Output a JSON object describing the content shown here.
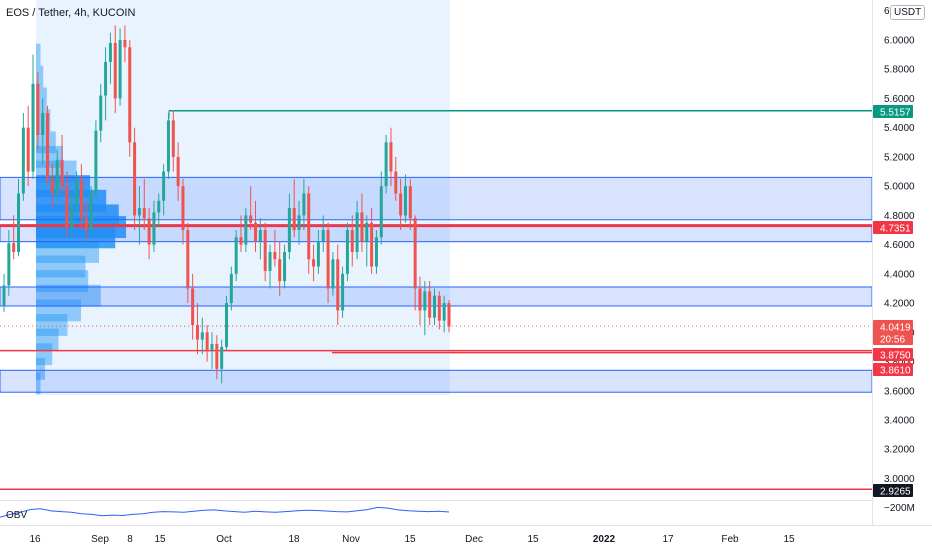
{
  "header": {
    "symbol": "EOS / Tether, 4h, KUCOIN",
    "currency": "USDT"
  },
  "colors": {
    "up": "#26a69a",
    "down": "#ef5350",
    "zone": "#2962ff",
    "redline": "#f23645",
    "greenline": "#089981",
    "profile": "#2196f3",
    "last_price": "#ef5350",
    "label_dark": "#131722"
  },
  "chart_data": {
    "type": "candlestick",
    "y_axis": {
      "ticks": [
        "6.0000",
        "5.8000",
        "5.6000",
        "5.4000",
        "5.2000",
        "5.0000",
        "4.8000",
        "4.6000",
        "4.4000",
        "4.2000",
        "4.0000",
        "3.8000",
        "3.6000",
        "3.4000",
        "3.2000",
        "3.0000"
      ],
      "top_partial_label": "6."
    },
    "x_axis": {
      "ticks": [
        "16",
        "Sep",
        "8",
        "15",
        "Oct",
        "18",
        "Nov",
        "15",
        "Dec",
        "15",
        "2022",
        "17",
        "Feb",
        "15"
      ]
    },
    "price_tags": [
      {
        "value": "5.5157",
        "kind": "green"
      },
      {
        "value": "4.7351",
        "kind": "red"
      },
      {
        "value": "4.0419",
        "kind": "last"
      },
      {
        "value": "20:56",
        "kind": "countdown"
      },
      {
        "value": "3.8750",
        "kind": "red"
      },
      {
        "value": "3.8610",
        "kind": "red"
      },
      {
        "value": "2.9265",
        "kind": "dark"
      }
    ],
    "horizontal_lines": [
      {
        "price": 5.5157,
        "color": "green",
        "from_date": "Sep 21"
      },
      {
        "price": 4.7351,
        "color": "red"
      },
      {
        "price": 4.725,
        "color": "red"
      },
      {
        "price": 3.875,
        "color": "red"
      },
      {
        "price": 3.861,
        "color": "red",
        "from_date": "Oct 31"
      },
      {
        "price": 2.9265,
        "color": "red"
      }
    ],
    "zones": [
      {
        "low": 4.77,
        "high": 5.06
      },
      {
        "low": 4.62,
        "high": 4.73
      },
      {
        "low": 4.18,
        "high": 4.31
      },
      {
        "low": 3.59,
        "high": 3.74
      }
    ],
    "candles": [
      {
        "o": 4.18,
        "h": 4.4,
        "l": 4.14,
        "c": 4.32
      },
      {
        "o": 4.32,
        "h": 4.7,
        "l": 4.25,
        "c": 4.61
      },
      {
        "o": 4.61,
        "h": 4.8,
        "l": 4.5,
        "c": 4.55
      },
      {
        "o": 4.55,
        "h": 5.05,
        "l": 4.52,
        "c": 4.95
      },
      {
        "o": 4.95,
        "h": 5.5,
        "l": 4.9,
        "c": 5.4
      },
      {
        "o": 5.4,
        "h": 5.55,
        "l": 5.0,
        "c": 5.1
      },
      {
        "o": 5.1,
        "h": 5.9,
        "l": 5.05,
        "c": 5.7
      },
      {
        "o": 5.7,
        "h": 5.78,
        "l": 5.25,
        "c": 5.35
      },
      {
        "o": 5.35,
        "h": 5.6,
        "l": 5.15,
        "c": 5.5
      },
      {
        "o": 5.5,
        "h": 5.55,
        "l": 5.0,
        "c": 5.05
      },
      {
        "o": 5.05,
        "h": 5.15,
        "l": 4.85,
        "c": 4.95
      },
      {
        "o": 4.95,
        "h": 5.25,
        "l": 4.9,
        "c": 5.18
      },
      {
        "o": 5.18,
        "h": 5.35,
        "l": 4.95,
        "c": 5.0
      },
      {
        "o": 5.0,
        "h": 5.1,
        "l": 4.65,
        "c": 4.72
      },
      {
        "o": 4.72,
        "h": 4.95,
        "l": 4.65,
        "c": 4.88
      },
      {
        "o": 4.88,
        "h": 5.1,
        "l": 4.8,
        "c": 5.05
      },
      {
        "o": 5.05,
        "h": 5.15,
        "l": 4.7,
        "c": 4.78
      },
      {
        "o": 4.78,
        "h": 4.9,
        "l": 4.62,
        "c": 4.7
      },
      {
        "o": 4.7,
        "h": 5.0,
        "l": 4.65,
        "c": 4.95
      },
      {
        "o": 4.95,
        "h": 5.45,
        "l": 4.92,
        "c": 5.38
      },
      {
        "o": 5.38,
        "h": 5.7,
        "l": 5.3,
        "c": 5.62
      },
      {
        "o": 5.62,
        "h": 5.95,
        "l": 5.45,
        "c": 5.85
      },
      {
        "o": 5.85,
        "h": 6.05,
        "l": 5.7,
        "c": 5.98
      },
      {
        "o": 5.98,
        "h": 6.1,
        "l": 5.5,
        "c": 5.6
      },
      {
        "o": 5.6,
        "h": 6.08,
        "l": 5.55,
        "c": 6.0
      },
      {
        "o": 6.0,
        "h": 6.1,
        "l": 5.85,
        "c": 5.95
      },
      {
        "o": 5.95,
        "h": 6.0,
        "l": 5.2,
        "c": 5.3
      },
      {
        "o": 5.3,
        "h": 5.4,
        "l": 4.7,
        "c": 4.8
      },
      {
        "o": 4.8,
        "h": 5.0,
        "l": 4.6,
        "c": 4.85
      },
      {
        "o": 4.85,
        "h": 5.05,
        "l": 4.7,
        "c": 4.78
      },
      {
        "o": 4.78,
        "h": 4.85,
        "l": 4.5,
        "c": 4.6
      },
      {
        "o": 4.6,
        "h": 4.9,
        "l": 4.55,
        "c": 4.82
      },
      {
        "o": 4.82,
        "h": 4.95,
        "l": 4.72,
        "c": 4.9
      },
      {
        "o": 4.9,
        "h": 5.15,
        "l": 4.8,
        "c": 5.1
      },
      {
        "o": 5.1,
        "h": 5.5,
        "l": 5.05,
        "c": 5.45
      },
      {
        "o": 5.45,
        "h": 5.52,
        "l": 5.1,
        "c": 5.2
      },
      {
        "o": 5.2,
        "h": 5.3,
        "l": 4.9,
        "c": 5.0
      },
      {
        "o": 5.0,
        "h": 5.05,
        "l": 4.6,
        "c": 4.7
      },
      {
        "o": 4.7,
        "h": 4.75,
        "l": 4.2,
        "c": 4.3
      },
      {
        "o": 4.3,
        "h": 4.4,
        "l": 3.95,
        "c": 4.05
      },
      {
        "o": 4.05,
        "h": 4.2,
        "l": 3.85,
        "c": 3.95
      },
      {
        "o": 3.95,
        "h": 4.1,
        "l": 3.85,
        "c": 4.0
      },
      {
        "o": 4.0,
        "h": 4.05,
        "l": 3.8,
        "c": 3.88
      },
      {
        "o": 3.88,
        "h": 4.0,
        "l": 3.75,
        "c": 3.92
      },
      {
        "o": 3.92,
        "h": 3.98,
        "l": 3.68,
        "c": 3.75
      },
      {
        "o": 3.75,
        "h": 3.95,
        "l": 3.65,
        "c": 3.9
      },
      {
        "o": 3.9,
        "h": 4.25,
        "l": 3.88,
        "c": 4.2
      },
      {
        "o": 4.2,
        "h": 4.45,
        "l": 4.15,
        "c": 4.4
      },
      {
        "o": 4.4,
        "h": 4.7,
        "l": 4.35,
        "c": 4.65
      },
      {
        "o": 4.65,
        "h": 4.8,
        "l": 4.55,
        "c": 4.6
      },
      {
        "o": 4.6,
        "h": 4.85,
        "l": 4.55,
        "c": 4.8
      },
      {
        "o": 4.8,
        "h": 5.0,
        "l": 4.7,
        "c": 4.75
      },
      {
        "o": 4.75,
        "h": 4.9,
        "l": 4.55,
        "c": 4.62
      },
      {
        "o": 4.62,
        "h": 4.78,
        "l": 4.5,
        "c": 4.7
      },
      {
        "o": 4.7,
        "h": 4.75,
        "l": 4.35,
        "c": 4.42
      },
      {
        "o": 4.42,
        "h": 4.6,
        "l": 4.3,
        "c": 4.55
      },
      {
        "o": 4.55,
        "h": 4.7,
        "l": 4.45,
        "c": 4.5
      },
      {
        "o": 4.5,
        "h": 4.62,
        "l": 4.25,
        "c": 4.35
      },
      {
        "o": 4.35,
        "h": 4.6,
        "l": 4.3,
        "c": 4.55
      },
      {
        "o": 4.55,
        "h": 4.95,
        "l": 4.5,
        "c": 4.85
      },
      {
        "o": 4.85,
        "h": 5.05,
        "l": 4.65,
        "c": 4.7
      },
      {
        "o": 4.7,
        "h": 4.9,
        "l": 4.6,
        "c": 4.8
      },
      {
        "o": 4.8,
        "h": 5.05,
        "l": 4.7,
        "c": 4.95
      },
      {
        "o": 4.95,
        "h": 5.0,
        "l": 4.4,
        "c": 4.5
      },
      {
        "o": 4.5,
        "h": 4.6,
        "l": 4.35,
        "c": 4.45
      },
      {
        "o": 4.45,
        "h": 4.7,
        "l": 4.4,
        "c": 4.62
      },
      {
        "o": 4.62,
        "h": 4.8,
        "l": 4.55,
        "c": 4.7
      },
      {
        "o": 4.7,
        "h": 4.75,
        "l": 4.2,
        "c": 4.3
      },
      {
        "o": 4.3,
        "h": 4.55,
        "l": 4.25,
        "c": 4.5
      },
      {
        "o": 4.5,
        "h": 4.6,
        "l": 4.05,
        "c": 4.15
      },
      {
        "o": 4.15,
        "h": 4.45,
        "l": 4.1,
        "c": 4.4
      },
      {
        "o": 4.4,
        "h": 4.75,
        "l": 4.35,
        "c": 4.7
      },
      {
        "o": 4.7,
        "h": 4.8,
        "l": 4.45,
        "c": 4.55
      },
      {
        "o": 4.55,
        "h": 4.9,
        "l": 4.5,
        "c": 4.82
      },
      {
        "o": 4.82,
        "h": 4.95,
        "l": 4.55,
        "c": 4.62
      },
      {
        "o": 4.62,
        "h": 4.8,
        "l": 4.45,
        "c": 4.75
      },
      {
        "o": 4.75,
        "h": 4.85,
        "l": 4.4,
        "c": 4.45
      },
      {
        "o": 4.45,
        "h": 4.7,
        "l": 4.4,
        "c": 4.65
      },
      {
        "o": 4.65,
        "h": 5.1,
        "l": 4.6,
        "c": 5.0
      },
      {
        "o": 5.0,
        "h": 5.35,
        "l": 4.95,
        "c": 5.3
      },
      {
        "o": 5.3,
        "h": 5.4,
        "l": 5.0,
        "c": 5.1
      },
      {
        "o": 5.1,
        "h": 5.2,
        "l": 4.9,
        "c": 4.95
      },
      {
        "o": 4.95,
        "h": 5.05,
        "l": 4.7,
        "c": 4.8
      },
      {
        "o": 4.8,
        "h": 5.08,
        "l": 4.75,
        "c": 5.0
      },
      {
        "o": 5.0,
        "h": 5.05,
        "l": 4.7,
        "c": 4.78
      },
      {
        "o": 4.78,
        "h": 4.8,
        "l": 4.15,
        "c": 4.3
      },
      {
        "o": 4.3,
        "h": 4.38,
        "l": 4.05,
        "c": 4.15
      },
      {
        "o": 4.15,
        "h": 4.35,
        "l": 3.98,
        "c": 4.28
      },
      {
        "o": 4.28,
        "h": 4.35,
        "l": 4.05,
        "c": 4.1
      },
      {
        "o": 4.1,
        "h": 4.3,
        "l": 4.05,
        "c": 4.25
      },
      {
        "o": 4.25,
        "h": 4.28,
        "l": 4.02,
        "c": 4.08
      },
      {
        "o": 4.08,
        "h": 4.25,
        "l": 4.0,
        "c": 4.2
      },
      {
        "o": 4.2,
        "h": 4.22,
        "l": 4.0,
        "c": 4.04
      }
    ],
    "volume_profile": [
      {
        "price": 5.9,
        "volume": 5
      },
      {
        "price": 5.75,
        "volume": 8
      },
      {
        "price": 5.6,
        "volume": 12
      },
      {
        "price": 5.45,
        "volume": 16
      },
      {
        "price": 5.3,
        "volume": 22
      },
      {
        "price": 5.2,
        "volume": 30
      },
      {
        "price": 5.1,
        "volume": 45
      },
      {
        "price": 5.0,
        "volume": 60
      },
      {
        "price": 4.9,
        "volume": 78
      },
      {
        "price": 4.8,
        "volume": 92
      },
      {
        "price": 4.72,
        "volume": 100
      },
      {
        "price": 4.65,
        "volume": 88
      },
      {
        "price": 4.55,
        "volume": 70
      },
      {
        "price": 4.45,
        "volume": 55
      },
      {
        "price": 4.35,
        "volume": 58
      },
      {
        "price": 4.25,
        "volume": 72
      },
      {
        "price": 4.15,
        "volume": 50
      },
      {
        "price": 4.05,
        "volume": 35
      },
      {
        "price": 3.95,
        "volume": 25
      },
      {
        "price": 3.85,
        "volume": 18
      },
      {
        "price": 3.75,
        "volume": 10
      },
      {
        "price": 3.65,
        "volume": 5
      }
    ],
    "indicator": {
      "name": "OBV",
      "axis_label": "−200M",
      "values": [
        0.2,
        0.4,
        0.55,
        0.75,
        0.8,
        0.65,
        0.6,
        0.55,
        0.45,
        0.4,
        0.3,
        0.35,
        0.32,
        0.4,
        0.45,
        0.55,
        0.6,
        0.58,
        0.55,
        0.62,
        0.7,
        0.72,
        0.65,
        0.6,
        0.55,
        0.62,
        0.58,
        0.55,
        0.6,
        0.65,
        0.7,
        0.68,
        0.64,
        0.6,
        0.58,
        0.66,
        0.74,
        0.9,
        0.85,
        0.72,
        0.66,
        0.62,
        0.6,
        0.62,
        0.57
      ]
    }
  }
}
